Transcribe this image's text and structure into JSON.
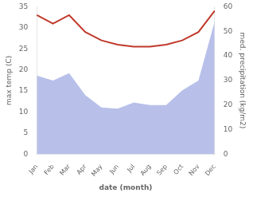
{
  "chart_data": {
    "type": "line",
    "categories": [
      "Jan",
      "Feb",
      "Mar",
      "Apr",
      "May",
      "Jun",
      "Jul",
      "Aug",
      "Sep",
      "Oct",
      "Nov",
      "Dec"
    ],
    "xlabel": "date (month)",
    "ylabel": "max temp (C)",
    "y2label": "med. precipitation (kg/m2)",
    "series": [
      {
        "type": "area",
        "color": "#b8c0ea",
        "axis": "y2",
        "values": [
          32,
          30,
          33,
          24,
          19,
          18.5,
          21,
          20,
          20,
          26,
          30,
          54
        ]
      },
      {
        "type": "line",
        "color": "#c0392b",
        "values": [
          33,
          31,
          33,
          29,
          27,
          26,
          25.5,
          25.5,
          26,
          27,
          29,
          34
        ]
      }
    ],
    "ylim": [
      0,
      35
    ],
    "yticks": [
      0,
      5,
      10,
      15,
      20,
      25,
      30,
      35
    ],
    "y2lim": [
      0,
      60
    ],
    "y2ticks": [
      0,
      10,
      20,
      30,
      40,
      50,
      60
    ],
    "grid": false
  }
}
